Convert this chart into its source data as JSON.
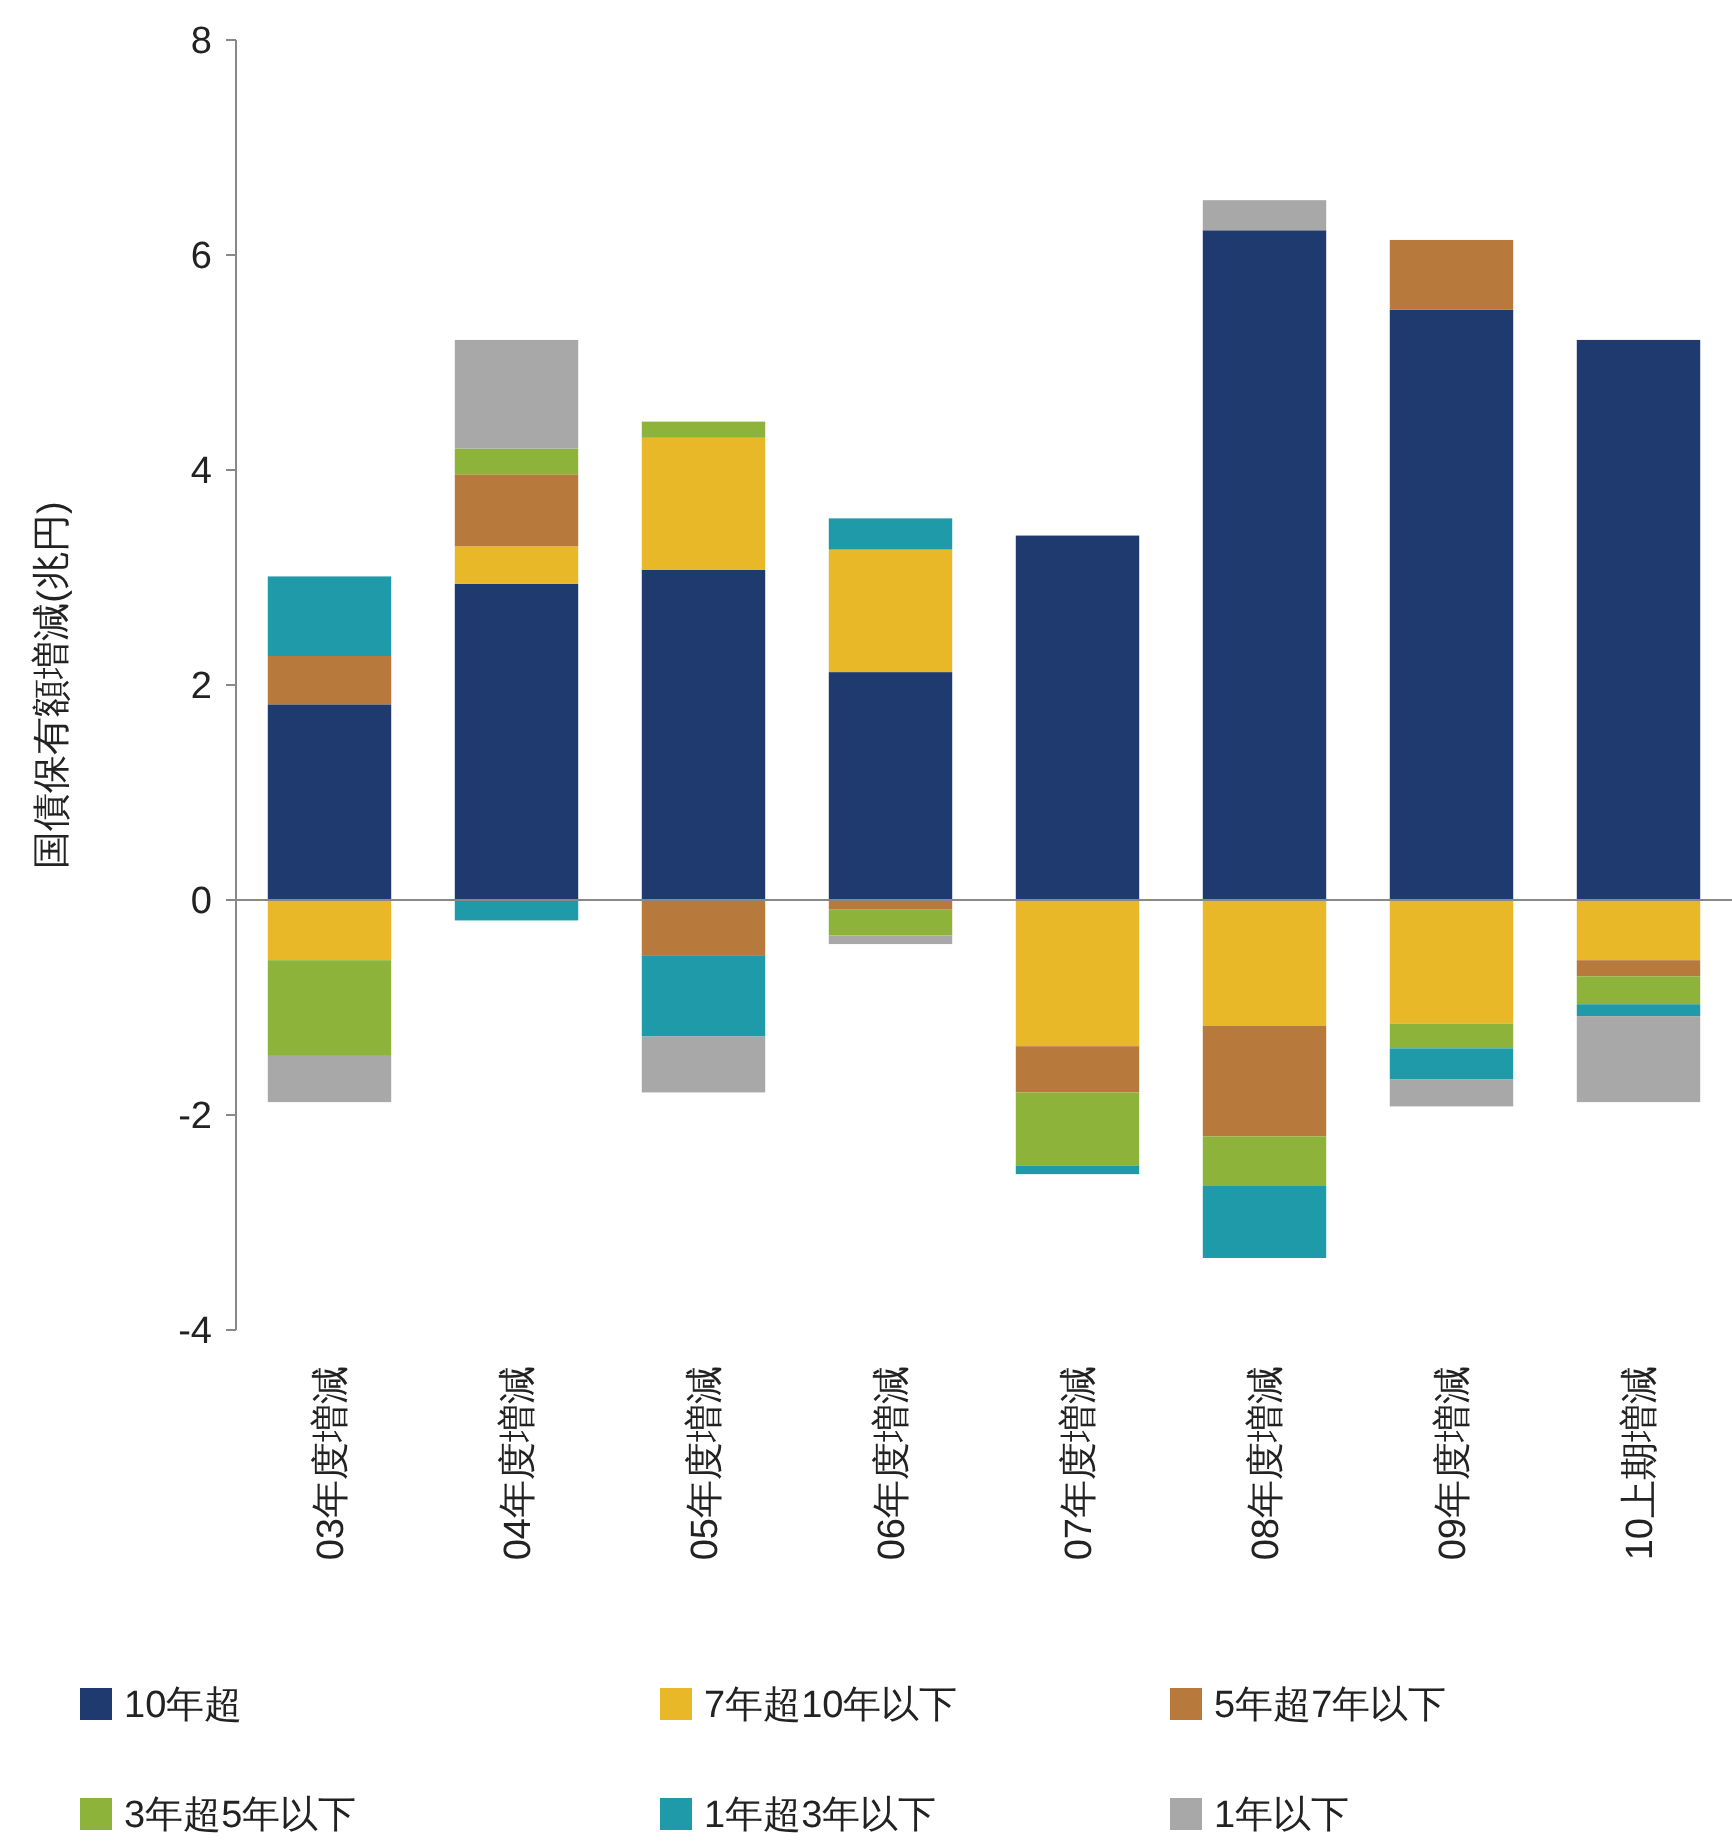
{
  "chart_data": {
    "type": "bar",
    "stacked": true,
    "ylabel": "国債保有額増減(兆円)",
    "categories": [
      "03年度増減",
      "04年度増減",
      "05年度増減",
      "06年度増減",
      "07年度増減",
      "08年度増減",
      "09年度増減",
      "10上期増減"
    ],
    "series": [
      {
        "name": "10年超",
        "color": "#1f3a6e",
        "values": [
          1.82,
          2.94,
          3.07,
          2.12,
          3.39,
          6.23,
          5.49,
          5.21
        ]
      },
      {
        "name": "7年超10年以下",
        "color": "#e8b828",
        "values": [
          -0.56,
          0.35,
          1.23,
          1.14,
          -1.36,
          -1.17,
          -1.15,
          -0.56
        ]
      },
      {
        "name": "5年超7年以下",
        "color": "#b87a3c",
        "values": [
          0.45,
          0.67,
          -0.52,
          -0.09,
          -0.43,
          -1.03,
          0.65,
          -0.15
        ]
      },
      {
        "name": "3年超5年以下",
        "color": "#8db33a",
        "values": [
          -0.89,
          0.24,
          0.15,
          -0.24,
          -0.68,
          -0.46,
          -0.23,
          -0.26
        ]
      },
      {
        "name": "1年超3年以下",
        "color": "#1e9aa8",
        "values": [
          0.74,
          -0.19,
          -0.75,
          0.29,
          -0.08,
          -0.67,
          -0.29,
          -0.11
        ]
      },
      {
        "name": "1年以下",
        "color": "#a8a8a8",
        "values": [
          -0.43,
          1.01,
          -0.52,
          -0.08,
          null,
          0.28,
          -0.25,
          -0.8
        ]
      }
    ],
    "ylim": [
      -4,
      8
    ],
    "yticks": [
      -4,
      -2,
      0,
      2,
      4,
      6,
      8
    ],
    "legend": "bottom"
  }
}
